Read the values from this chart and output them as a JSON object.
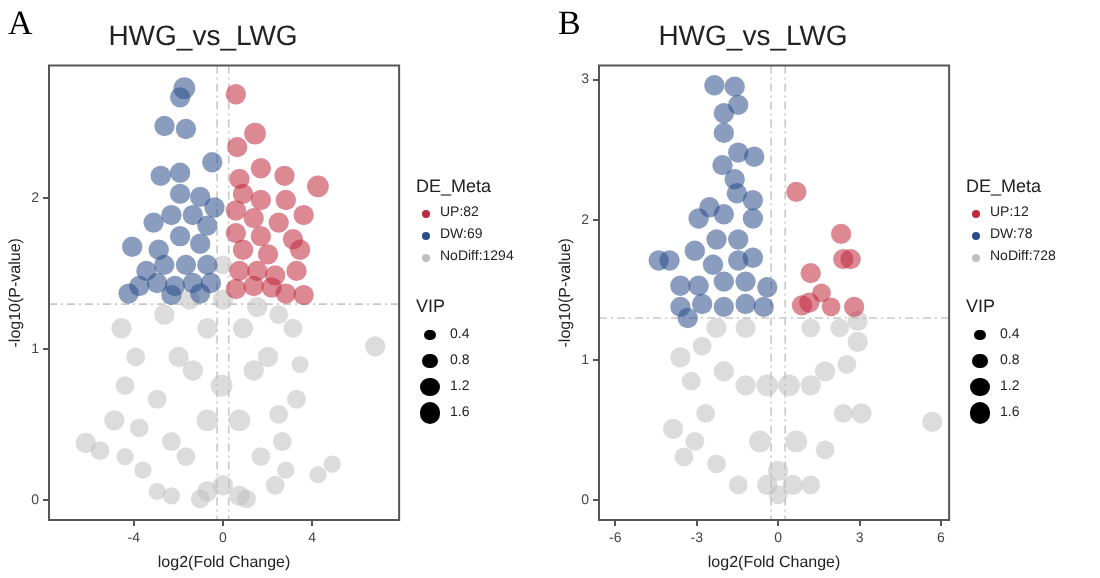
{
  "chart_data": [
    {
      "type": "bubble",
      "title": "HWG_vs_LWG",
      "xlabel": "log2(Fold Change)",
      "ylabel": "-log10(P-value)",
      "legend_title": "DE_Meta",
      "legend": "right",
      "marker": "circle",
      "annotations": [
        "A",
        "VIP"
      ],
      "xlim": [
        -7.8,
        7.9
      ],
      "xticks": [
        -4,
        0,
        4
      ],
      "ylim": [
        -0.13,
        2.88
      ],
      "yticks": [
        0,
        1,
        2
      ],
      "size_legend": [
        0.4,
        0.8,
        1.2,
        1.6
      ],
      "ref_lines": [
        {
          "axis": "x",
          "value": -0.26,
          "color": "#c8c8c8",
          "line_style": "dashed"
        },
        {
          "axis": "x",
          "value": 0.26,
          "color": "#c8c8c8",
          "line_style": "dashed"
        },
        {
          "axis": "y",
          "value": 1.3,
          "color": "#c8c8c8",
          "line_style": "dashed"
        }
      ],
      "series": [
        {
          "name": "UP:82",
          "color": "#c0283c",
          "x": [
            0.58,
            1.44,
            0.64,
            1.7,
            2.76,
            4.26,
            0.74,
            0.9,
            1.7,
            2.82,
            0.58,
            1.38,
            2.5,
            3.62,
            0.58,
            1.7,
            3.14,
            0.9,
            2.02,
            3.46,
            0.74,
            1.54,
            2.34,
            3.3,
            0.58,
            1.38,
            2.18,
            2.82,
            3.62
          ],
          "values": [
            2.69,
            2.43,
            2.34,
            2.2,
            2.15,
            2.08,
            2.13,
            2.03,
            1.99,
            1.99,
            1.92,
            1.87,
            1.84,
            1.89,
            1.77,
            1.75,
            1.73,
            1.66,
            1.63,
            1.66,
            1.52,
            1.52,
            1.49,
            1.52,
            1.4,
            1.42,
            1.41,
            1.37,
            1.36
          ],
          "sizes": [
            1.4,
            1.6,
            1.4,
            1.4,
            1.4,
            1.6,
            1.4,
            1.4,
            1.4,
            1.4,
            1.4,
            1.4,
            1.4,
            1.4,
            1.4,
            1.4,
            1.4,
            1.4,
            1.4,
            1.4,
            1.4,
            1.4,
            1.4,
            1.4,
            1.4,
            1.4,
            1.4,
            1.4,
            1.4
          ]
        },
        {
          "name": "DW:69",
          "color": "#2a4d8a",
          "x": [
            -1.73,
            -1.92,
            -2.62,
            -1.66,
            -2.79,
            -1.92,
            -0.48,
            -1.92,
            -1.02,
            -0.38,
            -3.11,
            -2.31,
            -1.35,
            -0.7,
            -4.07,
            -2.88,
            -1.92,
            -1.02,
            -3.43,
            -2.63,
            -1.66,
            -0.7,
            -3.75,
            -2.95,
            -2.15,
            -1.35,
            -0.54,
            -4.23,
            -2.31,
            -1.02
          ],
          "values": [
            2.73,
            2.67,
            2.48,
            2.46,
            2.15,
            2.17,
            2.24,
            2.03,
            2.01,
            1.94,
            1.84,
            1.89,
            1.89,
            1.82,
            1.68,
            1.66,
            1.75,
            1.7,
            1.52,
            1.56,
            1.56,
            1.56,
            1.42,
            1.44,
            1.42,
            1.44,
            1.44,
            1.37,
            1.36,
            1.37
          ],
          "sizes": [
            1.6,
            1.4,
            1.4,
            1.4,
            1.4,
            1.4,
            1.4,
            1.4,
            1.4,
            1.4,
            1.4,
            1.4,
            1.4,
            1.4,
            1.4,
            1.4,
            1.4,
            1.4,
            1.4,
            1.4,
            1.4,
            1.4,
            1.4,
            1.4,
            1.4,
            1.4,
            1.4,
            1.4,
            1.4,
            1.4
          ]
        },
        {
          "name": "NoDiff:1294",
          "color": "#bfbfbf",
          "x": [
            6.83,
            -6.15,
            -5.51,
            -4.87,
            -4.39,
            -4.55,
            -3.91,
            -3.75,
            -4.39,
            -3.59,
            -2.95,
            -2.31,
            4.9,
            4.26,
            2.82,
            2.66,
            3.3,
            3.46,
            3.14,
            2.5,
            -2.63,
            -0.7,
            0.9,
            0,
            -0.06,
            -0.7,
            0.74,
            0,
            -0.7,
            0.74,
            -1.35,
            1.38,
            -1.99,
            2.02,
            -1.66,
            1.7,
            -1.02,
            1.06,
            -2.95,
            2.5,
            -2.31,
            2.34,
            -1.5,
            1.54,
            0
          ],
          "values": [
            1.02,
            0.38,
            0.33,
            0.53,
            0.76,
            1.14,
            0.95,
            0.48,
            0.29,
            0.2,
            0.06,
            0.03,
            0.24,
            0.17,
            0.2,
            0.39,
            0.67,
            0.9,
            1.14,
            1.23,
            1.23,
            1.14,
            1.14,
            1.56,
            0.76,
            0.53,
            0.53,
            0.1,
            0.06,
            0.03,
            0.86,
            0.86,
            0.95,
            0.95,
            0.29,
            0.29,
            0.01,
            0.01,
            0.67,
            0.57,
            0.39,
            0.1,
            1.33,
            1.28,
            1.33
          ],
          "sizes": [
            1.4,
            1.4,
            1.2,
            1.4,
            1.2,
            1.4,
            1.2,
            1.2,
            1,
            1,
            1,
            1,
            1,
            1,
            1,
            1.2,
            1.2,
            1,
            1.2,
            1.2,
            1.4,
            1.4,
            1.4,
            1.2,
            1.6,
            1.6,
            1.6,
            1.4,
            1.4,
            1.4,
            1.4,
            1.4,
            1.4,
            1.4,
            1.2,
            1.2,
            1.2,
            1.2,
            1.2,
            1.2,
            1.2,
            1.2,
            1.4,
            1.4,
            1.4
          ]
        }
      ]
    },
    {
      "type": "bubble",
      "title": "HWG_vs_LWG",
      "xlabel": "log2(Fold Change)",
      "ylabel": "-log10(P-value)",
      "legend_title": "DE_Meta",
      "legend": "right",
      "marker": "circle",
      "annotations": [
        "B",
        "VIP"
      ],
      "xlim": [
        -6.6,
        6.3
      ],
      "xticks": [
        -6,
        -3,
        0,
        3,
        6
      ],
      "ylim": [
        -0.14,
        3.1
      ],
      "yticks": [
        0,
        1,
        2,
        3
      ],
      "size_legend": [
        0.4,
        0.8,
        1.2,
        1.6
      ],
      "ref_lines": [
        {
          "axis": "x",
          "value": -0.26,
          "color": "#c8c8c8",
          "line_style": "dashed"
        },
        {
          "axis": "x",
          "value": 0.26,
          "color": "#c8c8c8",
          "line_style": "dashed"
        },
        {
          "axis": "y",
          "value": 1.3,
          "color": "#c8c8c8",
          "line_style": "dashed"
        }
      ],
      "series": [
        {
          "name": "UP:12",
          "color": "#c0283c",
          "x": [
            0.67,
            2.32,
            2.4,
            2.67,
            1.2,
            1.6,
            0.88,
            1.15,
            1.95,
            2.8
          ],
          "values": [
            2.2,
            1.9,
            1.72,
            1.72,
            1.62,
            1.48,
            1.39,
            1.41,
            1.38,
            1.38
          ],
          "sizes": [
            1.4,
            1.4,
            1.4,
            1.4,
            1.4,
            1.2,
            1.4,
            1.4,
            1.2,
            1.4
          ]
        },
        {
          "name": "DW:78",
          "color": "#2a4d8a",
          "x": [
            -2.35,
            -1.6,
            -1.47,
            -2,
            -2,
            -1.47,
            -0.88,
            -2.05,
            -1.6,
            -1.52,
            -2.53,
            -0.93,
            -2.93,
            -2,
            -0.93,
            -3.07,
            -2.27,
            -1.47,
            -4.4,
            -4,
            -2.4,
            -1.47,
            -0.93,
            -3.6,
            -2.93,
            -2,
            -1.2,
            -0.4,
            -3.6,
            -2.8,
            -2,
            -1.2,
            -0.53,
            -3.33
          ],
          "values": [
            2.96,
            2.95,
            2.82,
            2.76,
            2.62,
            2.48,
            2.45,
            2.39,
            2.29,
            2.19,
            2.09,
            2.14,
            2.01,
            2.04,
            2.01,
            1.78,
            1.86,
            1.86,
            1.71,
            1.71,
            1.68,
            1.71,
            1.73,
            1.53,
            1.53,
            1.56,
            1.56,
            1.52,
            1.38,
            1.4,
            1.38,
            1.4,
            1.38,
            1.3
          ],
          "sizes": [
            1.4,
            1.4,
            1.4,
            1.4,
            1.4,
            1.4,
            1.4,
            1.4,
            1.4,
            1.4,
            1.4,
            1.4,
            1.4,
            1.4,
            1.4,
            1.4,
            1.4,
            1.4,
            1.4,
            1.4,
            1.4,
            1.4,
            1.4,
            1.4,
            1.4,
            1.4,
            1.4,
            1.4,
            1.4,
            1.4,
            1.4,
            1.4,
            1.4,
            1.4
          ]
        },
        {
          "name": "NoDiff:728",
          "color": "#bfbfbf",
          "x": [
            5.68,
            -3.87,
            -3.47,
            -3.07,
            -3.6,
            -3.2,
            -2.67,
            -2.27,
            -1.47,
            0,
            1.2,
            1.73,
            2.4,
            3.07,
            2.93,
            2.93,
            2.27,
            1.2,
            -1.2,
            -2.27,
            -0.4,
            0.4,
            -0.67,
            0.67,
            -1.2,
            1.2,
            -2,
            1.73,
            0,
            -0.4,
            0.53,
            -2.8,
            2.53
          ],
          "values": [
            0.56,
            0.51,
            0.31,
            0.42,
            1.02,
            0.85,
            0.62,
            0.26,
            0.11,
            0.04,
            0.11,
            0.36,
            0.62,
            0.62,
            1.13,
            1.28,
            1.23,
            1.23,
            1.23,
            1.23,
            0.82,
            0.82,
            0.42,
            0.42,
            0.82,
            0.82,
            0.92,
            0.92,
            0.21,
            0.11,
            0.11,
            1.1,
            0.97
          ],
          "sizes": [
            1.4,
            1.4,
            1.2,
            1.2,
            1.4,
            1.2,
            1.2,
            1.2,
            1.2,
            1.2,
            1.2,
            1.2,
            1.2,
            1.4,
            1.4,
            1.4,
            1.2,
            1.2,
            1.4,
            1.4,
            1.6,
            1.6,
            1.6,
            1.6,
            1.4,
            1.4,
            1.4,
            1.4,
            1.4,
            1.4,
            1.4,
            1.2,
            1.2
          ]
        }
      ]
    }
  ]
}
